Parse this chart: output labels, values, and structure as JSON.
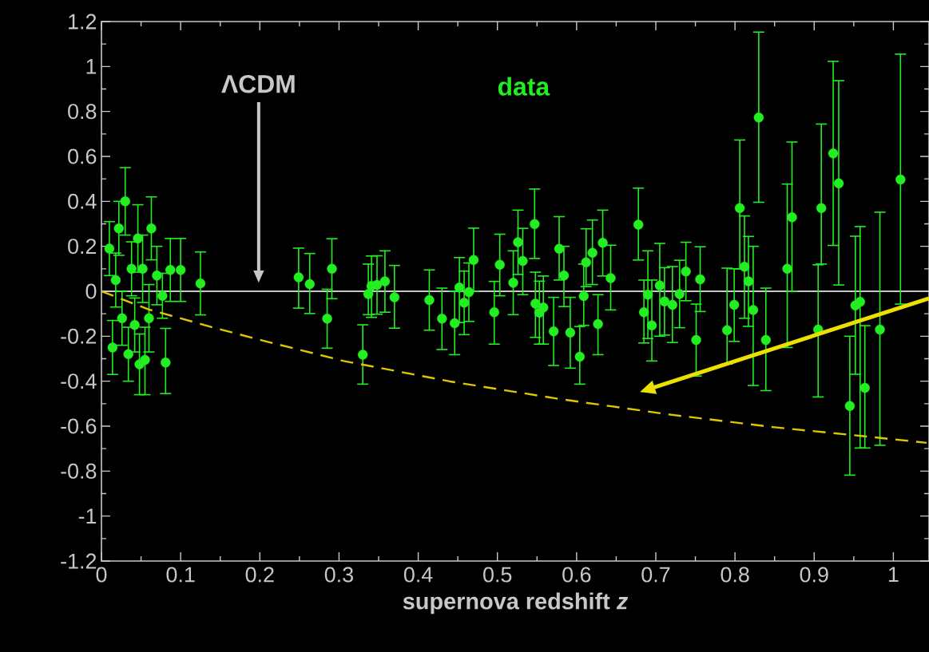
{
  "chart_data": {
    "type": "scatter",
    "xlabel": "supernova redshift *z*",
    "xlim": [
      0,
      1.045
    ],
    "ylim": [
      -1.2,
      1.2
    ],
    "xticks": [
      0,
      0.1,
      0.2,
      0.3,
      0.4,
      0.5,
      0.6,
      0.7,
      0.8,
      0.9,
      1
    ],
    "yticks": [
      -1.2,
      -1,
      -0.8,
      -0.6,
      -0.4,
      -0.2,
      0,
      0.2,
      0.4,
      0.6,
      0.8,
      1,
      1.2
    ],
    "ref_lines": [
      {
        "axis": "y",
        "value": 0,
        "color": "#c8c8c8",
        "label": "ΛCDM"
      }
    ],
    "series": [
      {
        "name": "data",
        "color": "#22ee22",
        "marker": "circle",
        "x": [
          0.01,
          0.014,
          0.018,
          0.022,
          0.026,
          0.03,
          0.034,
          0.038,
          0.042,
          0.046,
          0.048,
          0.052,
          0.055,
          0.06,
          0.063,
          0.07,
          0.077,
          0.081,
          0.087,
          0.1,
          0.125,
          0.249,
          0.263,
          0.285,
          0.291,
          0.33,
          0.337,
          0.341,
          0.348,
          0.358,
          0.37,
          0.414,
          0.43,
          0.446,
          0.452,
          0.458,
          0.464,
          0.47,
          0.496,
          0.503,
          0.52,
          0.526,
          0.532,
          0.547,
          0.548,
          0.553,
          0.558,
          0.571,
          0.578,
          0.584,
          0.592,
          0.604,
          0.609,
          0.612,
          0.62,
          0.627,
          0.633,
          0.643,
          0.678,
          0.685,
          0.69,
          0.695,
          0.705,
          0.711,
          0.721,
          0.73,
          0.738,
          0.751,
          0.756,
          0.79,
          0.799,
          0.806,
          0.812,
          0.817,
          0.823,
          0.83,
          0.839,
          0.866,
          0.872,
          0.905,
          0.909,
          0.924,
          0.931,
          0.945,
          0.952,
          0.958,
          0.964,
          0.983,
          1.009
        ],
        "values": [
          0.19,
          -0.25,
          0.05,
          0.28,
          -0.12,
          0.4,
          -0.28,
          0.1,
          -0.15,
          0.235,
          -0.325,
          0.1,
          -0.305,
          -0.12,
          0.28,
          0.07,
          -0.02,
          -0.317,
          0.095,
          0.095,
          0.035,
          0.062,
          0.032,
          -0.122,
          0.1,
          -0.282,
          -0.012,
          0.024,
          0.028,
          0.044,
          -0.027,
          -0.039,
          -0.122,
          -0.142,
          0.017,
          -0.051,
          -0.004,
          0.139,
          -0.093,
          0.118,
          0.038,
          0.218,
          0.135,
          0.299,
          -0.055,
          -0.095,
          -0.072,
          -0.178,
          0.189,
          0.07,
          -0.184,
          -0.291,
          -0.021,
          0.129,
          0.171,
          -0.146,
          0.216,
          0.059,
          0.296,
          -0.093,
          -0.015,
          -0.152,
          0.026,
          -0.045,
          -0.06,
          -0.012,
          0.088,
          -0.217,
          0.053,
          -0.173,
          -0.06,
          0.37,
          0.109,
          0.044,
          -0.083,
          0.773,
          -0.217,
          0.1,
          0.329,
          -0.17,
          0.37,
          0.613,
          0.48,
          -0.51,
          -0.063,
          -0.047,
          -0.43,
          -0.17,
          0.497
        ],
        "errors": [
          0.12,
          0.12,
          0.12,
          0.12,
          0.12,
          0.15,
          0.12,
          0.12,
          0.12,
          0.15,
          [
            -0.46,
            -0.19
          ],
          0.15,
          [
            -0.46,
            -0.16
          ],
          0.15,
          [
            0.14,
            0.42
          ],
          0.13,
          0.1,
          [
            -0.455,
            -0.165
          ],
          [
            -0.045,
            0.235
          ],
          [
            -0.045,
            0.235
          ],
          [
            -0.105,
            0.175
          ],
          [
            -0.075,
            0.192
          ],
          [
            -0.099,
            0.168
          ],
          [
            -0.253,
            0.009
          ],
          [
            -0.033,
            0.234
          ],
          [
            -0.413,
            -0.149
          ],
          [
            -0.104,
            0.121
          ],
          [
            -0.116,
            0.157
          ],
          0.13,
          [
            -0.093,
            0.18
          ],
          [
            -0.164,
            0.115
          ],
          [
            -0.173,
            0.095
          ],
          [
            -0.259,
            0.014
          ],
          [
            -0.282,
            0.0
          ],
          [
            -0.139,
            0.15
          ],
          [
            -0.193,
            0.09
          ],
          0.13,
          [
            0.0,
            0.281
          ],
          [
            -0.235,
            0.044
          ],
          [
            -0.02,
            0.254
          ],
          [
            -0.104,
            0.18
          ],
          [
            0.075,
            0.361
          ],
          [
            -0.015,
            0.28
          ],
          [
            0.146,
            0.455
          ],
          [
            -0.205,
            0.085
          ],
          0.14,
          [
            -0.235,
            0.068
          ],
          [
            -0.33,
            -0.027
          ],
          [
            0.05,
            0.332
          ],
          [
            -0.068,
            0.2
          ],
          [
            -0.342,
            -0.027
          ],
          [
            -0.413,
            -0.157
          ],
          [
            -0.152,
            0.121
          ],
          [
            0.021,
            0.278
          ],
          [
            0.03,
            0.317
          ],
          [
            -0.282,
            -0.015
          ],
          [
            0.068,
            0.361
          ],
          [
            -0.083,
            0.205
          ],
          [
            0.139,
            0.459
          ],
          [
            -0.23,
            0.05
          ],
          [
            -0.21,
            0.18
          ],
          [
            -0.31,
            0.05
          ],
          [
            -0.2,
            0.213
          ],
          0.15,
          [
            -0.228,
            0.11
          ],
          0.15,
          0.13,
          [
            -0.377,
            -0.057
          ],
          [
            -0.09,
            0.198
          ],
          [
            -0.324,
            0.103
          ],
          [
            -0.223,
            0.1
          ],
          [
            0.1,
            0.673
          ],
          [
            -0.12,
            0.335
          ],
          0.2,
          [
            -0.419,
            0.2
          ],
          [
            0.396,
            1.153
          ],
          [
            -0.442,
            0.014
          ],
          [
            -0.25,
            0.477
          ],
          [
            0.0,
            0.664
          ],
          [
            -0.47,
            0.118
          ],
          [
            0.121,
            0.744
          ],
          [
            0.204,
            1.023
          ],
          [
            0.028,
            0.937
          ],
          [
            -0.818,
            -0.2
          ],
          [
            -0.369,
            0.245
          ],
          [
            -0.697,
            0.288
          ],
          [
            -0.697,
            -0.153
          ],
          [
            -0.685,
            0.352
          ],
          [
            -0.057,
            1.055
          ]
        ]
      },
      {
        "type": "line",
        "color": "#dcc800",
        "line_style": "dashed",
        "marker": "none",
        "x": [
          0,
          0.06,
          0.144,
          0.208,
          0.306,
          0.44,
          0.58,
          0.719,
          0.85,
          0.95,
          1.042
        ],
        "values": [
          0,
          -0.081,
          -0.164,
          -0.223,
          -0.31,
          -0.401,
          -0.48,
          -0.549,
          -0.605,
          -0.64,
          -0.674
        ]
      }
    ]
  }
}
